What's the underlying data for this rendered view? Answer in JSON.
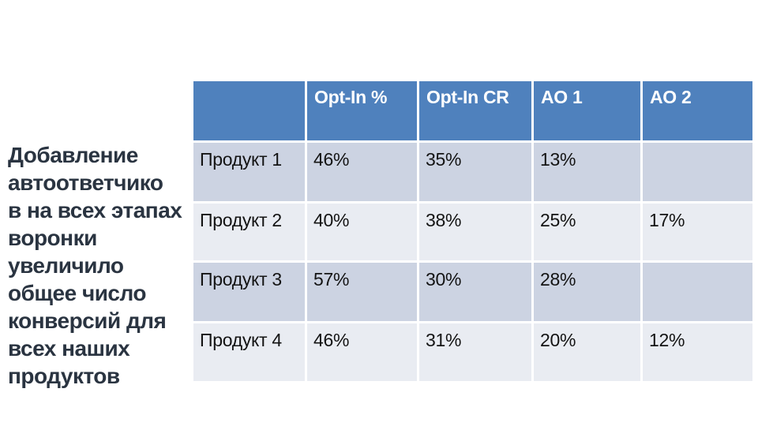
{
  "slide": {
    "background_color": "#ffffff",
    "annotation": {
      "color": "#2a3441",
      "full_text": "Добавление автоответчико в на всех этапах воронки увеличило общее число конверсий для всех наших продуктов",
      "lines": [
        "Добавление",
        "автоответчико",
        "в на всех этапах",
        "воронки",
        "увеличило",
        "общее число",
        "конверсий для",
        "всех наших",
        "продуктов"
      ]
    },
    "table": {
      "header_bg": "#4f81bd",
      "header_text_color": "#ffffff",
      "band_dark": "#ccd3e2",
      "band_light": "#e9ecf2",
      "columns": [
        "",
        "Opt-In %",
        "Opt-In CR",
        "AO 1",
        "AO 2"
      ],
      "rows": [
        {
          "label": "Продукт 1",
          "values": [
            "46%",
            "35%",
            "13%",
            ""
          ]
        },
        {
          "label": "Продукт 2",
          "values": [
            "40%",
            "38%",
            "25%",
            "17%"
          ]
        },
        {
          "label": "Продукт 3",
          "values": [
            "57%",
            "30%",
            "28%",
            ""
          ]
        },
        {
          "label": "Продукт 4",
          "values": [
            "46%",
            "31%",
            "20%",
            "12%"
          ]
        }
      ]
    }
  },
  "chart_data": {
    "type": "table",
    "columns": [
      "",
      "Opt-In %",
      "Opt-In CR",
      "AO 1",
      "AO 2"
    ],
    "rows": [
      [
        "Продукт 1",
        "46%",
        "35%",
        "13%",
        ""
      ],
      [
        "Продукт 2",
        "40%",
        "38%",
        "25%",
        "17%"
      ],
      [
        "Продукт 3",
        "57%",
        "30%",
        "28%",
        ""
      ],
      [
        "Продукт 4",
        "46%",
        "31%",
        "20%",
        "12%"
      ]
    ]
  }
}
